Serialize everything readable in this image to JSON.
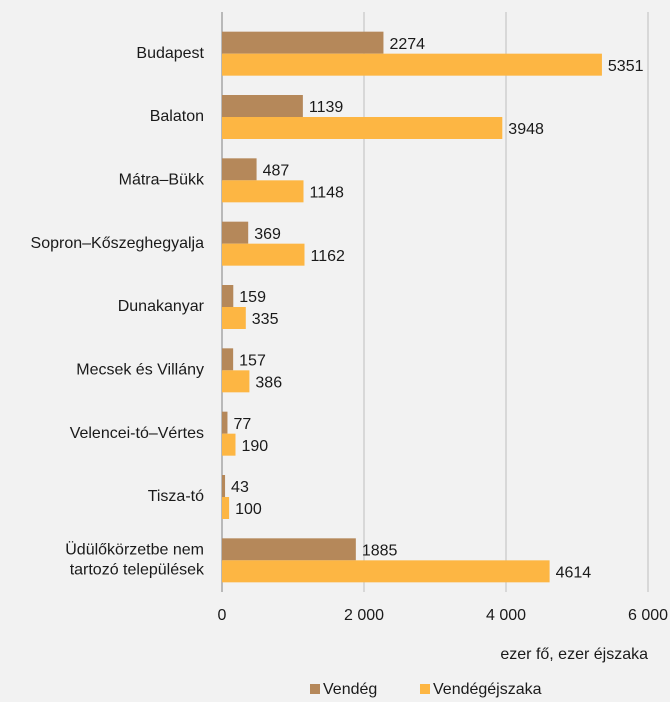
{
  "chart_data": {
    "type": "bar",
    "orientation": "horizontal",
    "categories": [
      "Budapest",
      "Balaton",
      "Mátra–Bükk",
      "Sopron–Kőszeghegyalja",
      "Dunakanyar",
      "Mecsek és Villány",
      "Velencei-tó–Vértes",
      "Tisza-tó",
      "Üdülőkörzetbe nem\ntartozó települések"
    ],
    "series": [
      {
        "name": "Vendég",
        "color": "#b5885a",
        "values": [
          2274,
          1139,
          487,
          369,
          159,
          157,
          77,
          43,
          1885
        ]
      },
      {
        "name": "Vendégéjszaka",
        "color": "#fdb643",
        "values": [
          5351,
          3948,
          1148,
          1162,
          335,
          386,
          190,
          100,
          4614
        ]
      }
    ],
    "xlim": [
      0,
      6000
    ],
    "xticks": [
      0,
      {
        "value": 2000,
        "label": "2 000"
      },
      {
        "value": 4000,
        "label": "4 000"
      },
      {
        "value": 6000,
        "label": "6 000"
      }
    ],
    "x_label": "ezer fő, ezer éjszaka",
    "grid": true,
    "legend": "bottom"
  }
}
